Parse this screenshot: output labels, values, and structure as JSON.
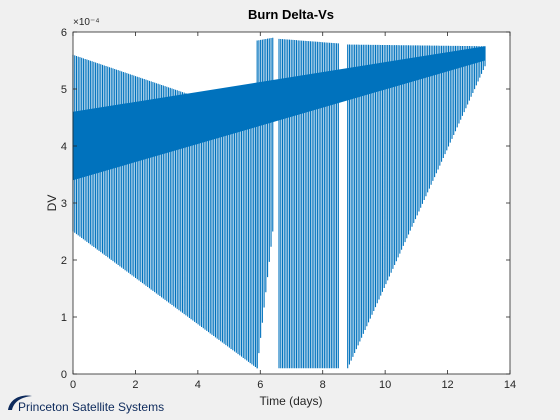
{
  "footer": {
    "brand": "Princeton Satellite Systems"
  },
  "chart_data": {
    "type": "line",
    "title": "Burn Delta-Vs",
    "xlabel": "Time (days)",
    "ylabel": "DV",
    "exponent_label": "×10⁻⁴",
    "xlim": [
      0,
      14
    ],
    "ylim": [
      0,
      6
    ],
    "xticks": [
      0,
      2,
      4,
      6,
      8,
      10,
      12,
      14
    ],
    "yticks": [
      0,
      1,
      2,
      3,
      4,
      5,
      6
    ],
    "grid": false,
    "series_color": "#0072bd",
    "envelopes": [
      {
        "name": "segment-1",
        "x": [
          0,
          5.9
        ],
        "upper": [
          5.6,
          4.5
        ],
        "lower": [
          2.5,
          0.1
        ]
      },
      {
        "name": "segment-2",
        "x": [
          5.9,
          6.4
        ],
        "upper": [
          5.85,
          5.9
        ],
        "lower": [
          0.1,
          2.5
        ]
      },
      {
        "name": "segment-3",
        "x": [
          6.6,
          8.5
        ],
        "upper": [
          5.88,
          5.8
        ],
        "lower": [
          0.1,
          0.1
        ]
      },
      {
        "name": "segment-4",
        "x": [
          8.8,
          13.2
        ],
        "upper": [
          5.78,
          5.75
        ],
        "lower": [
          0.1,
          5.4
        ]
      }
    ],
    "dense_band": {
      "x": [
        0,
        13.2
      ],
      "upper": [
        4.6,
        5.75
      ],
      "lower": [
        3.4,
        5.5
      ]
    }
  }
}
